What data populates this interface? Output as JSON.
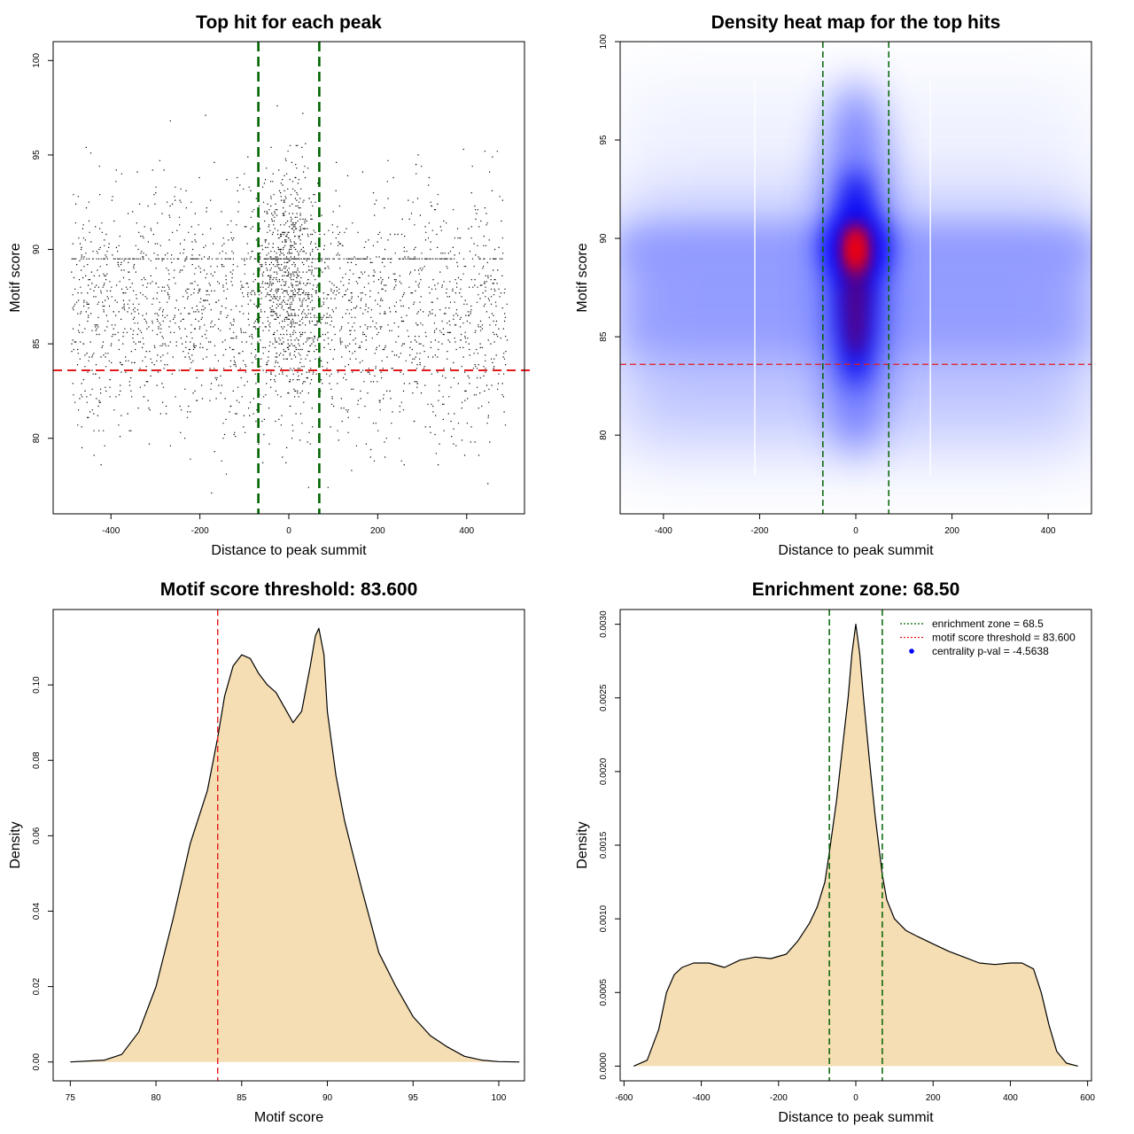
{
  "colors": {
    "threshold": "#e31a1c",
    "zone": "#006400",
    "fill": "#f5deb3",
    "dots": "#000000",
    "heat_low": "#ffffff",
    "heat_mid": "#0000ff",
    "heat_high": "#ff0000",
    "legend_point": "#0000ff"
  },
  "chart_data": [
    {
      "id": "scatter",
      "type": "scatter",
      "title": "Top hit for each peak",
      "xlabel": "Distance to peak summit",
      "ylabel": "Motif score",
      "xlim": [
        -530,
        530
      ],
      "ylim": [
        76,
        101
      ],
      "xticks": [
        -400,
        -200,
        0,
        200,
        400
      ],
      "yticks": [
        80,
        85,
        90,
        95,
        100
      ],
      "threshold": 83.6,
      "enrichment_zone": 68.5,
      "point_summary": {
        "n_points_approx": 12000,
        "x_range": [
          -490,
          490
        ],
        "score_band_mean": 86.5,
        "score_band_sd": 3.2,
        "central_cluster_center": 0,
        "central_cluster_sd": 35
      }
    },
    {
      "id": "heatmap",
      "type": "heatmap",
      "title": "Density heat map for the top hits",
      "xlabel": "Distance to peak summit",
      "ylabel": "Motif score",
      "xlim": [
        -490,
        490
      ],
      "ylim": [
        76,
        100
      ],
      "xticks": [
        -400,
        -200,
        0,
        200,
        400
      ],
      "yticks": [
        80,
        85,
        90,
        95,
        100
      ],
      "threshold": 83.6,
      "enrichment_zone": 68.5,
      "density_peak": {
        "x": 0,
        "y": 89.5
      }
    },
    {
      "id": "score-density",
      "type": "area",
      "title": "Motif score threshold: 83.600",
      "xlabel": "Motif score",
      "ylabel": "Density",
      "xlim": [
        74,
        101.5
      ],
      "ylim": [
        -0.005,
        0.12
      ],
      "xticks": [
        75,
        80,
        85,
        90,
        95,
        100
      ],
      "yticks": [
        0.0,
        0.02,
        0.04,
        0.06,
        0.08,
        0.1
      ],
      "ytick_labels": [
        "0.00",
        "0.02",
        "0.04",
        "0.06",
        "0.08",
        "0.10"
      ],
      "threshold": 83.6,
      "x": [
        75,
        77,
        78,
        79,
        80,
        81,
        82,
        83,
        83.6,
        84,
        84.5,
        85,
        85.5,
        86,
        86.5,
        87,
        87.5,
        88,
        88.5,
        89,
        89.3,
        89.5,
        89.8,
        90,
        90.5,
        91,
        91.5,
        92,
        93,
        94,
        95,
        96,
        97,
        98,
        99,
        100,
        101.2
      ],
      "y": [
        0.0,
        0.0005,
        0.002,
        0.008,
        0.02,
        0.038,
        0.058,
        0.072,
        0.086,
        0.097,
        0.105,
        0.108,
        0.107,
        0.103,
        0.1,
        0.098,
        0.094,
        0.09,
        0.093,
        0.105,
        0.113,
        0.115,
        0.108,
        0.093,
        0.076,
        0.064,
        0.055,
        0.046,
        0.029,
        0.02,
        0.012,
        0.007,
        0.004,
        0.0015,
        0.0005,
        0.0001,
        0.0
      ]
    },
    {
      "id": "distance-density",
      "type": "area",
      "title": "Enrichment zone: 68.50",
      "xlabel": "Distance to peak summit",
      "ylabel": "Density",
      "xlim": [
        -610,
        610
      ],
      "ylim": [
        -0.0001,
        0.0031
      ],
      "xticks": [
        -600,
        -400,
        -200,
        0,
        200,
        400,
        600
      ],
      "yticks": [
        0.0,
        0.0005,
        0.001,
        0.0015,
        0.002,
        0.0025,
        0.003
      ],
      "ytick_labels": [
        "0.0000",
        "0.0005",
        "0.0010",
        "0.0015",
        "0.0020",
        "0.0025",
        "0.0030"
      ],
      "enrichment_zone": 68.5,
      "x": [
        -575,
        -540,
        -510,
        -490,
        -470,
        -450,
        -420,
        -380,
        -340,
        -300,
        -260,
        -220,
        -180,
        -150,
        -120,
        -100,
        -80,
        -68.5,
        -50,
        -35,
        -20,
        -10,
        0,
        10,
        20,
        35,
        50,
        68.5,
        80,
        100,
        130,
        160,
        200,
        240,
        280,
        320,
        360,
        400,
        430,
        460,
        480,
        500,
        520,
        545,
        575
      ],
      "y": [
        0.0,
        4e-05,
        0.00025,
        0.0005,
        0.00062,
        0.00067,
        0.0007,
        0.0007,
        0.00067,
        0.00072,
        0.00074,
        0.00073,
        0.00076,
        0.00085,
        0.00097,
        0.00108,
        0.00125,
        0.00145,
        0.0018,
        0.00215,
        0.0025,
        0.0028,
        0.003,
        0.0028,
        0.0025,
        0.00208,
        0.0017,
        0.0013,
        0.00113,
        0.001,
        0.00092,
        0.00088,
        0.00083,
        0.00078,
        0.00074,
        0.0007,
        0.00069,
        0.0007,
        0.0007,
        0.00066,
        0.0005,
        0.00028,
        0.0001,
        2e-05,
        0.0
      ]
    }
  ],
  "legend": {
    "items": [
      {
        "label": "enrichment zone = 68.5",
        "kind": "dotted-line",
        "color": "#006400"
      },
      {
        "label": "motif score threshold = 83.600",
        "kind": "dotted-line",
        "color": "#e31a1c"
      },
      {
        "label": "centrality p-val = -4.5638",
        "kind": "point",
        "color": "#0000ff"
      }
    ]
  }
}
